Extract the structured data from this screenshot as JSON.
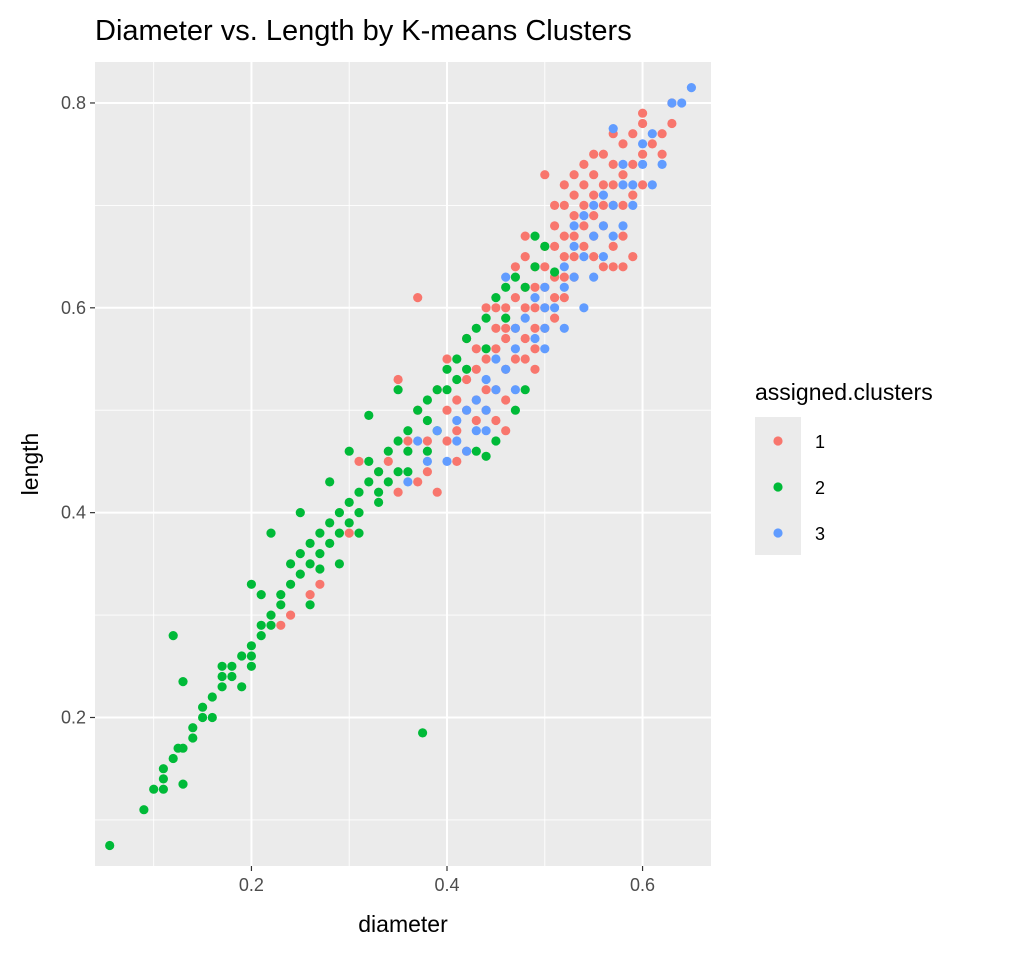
{
  "chart_data": {
    "type": "scatter",
    "title": "Diameter vs. Length by K-means Clusters",
    "xlabel": "diameter",
    "ylabel": "length",
    "xlim": [
      0.04,
      0.67
    ],
    "ylim": [
      0.055,
      0.84
    ],
    "x_ticks": [
      0.2,
      0.4,
      0.6
    ],
    "y_ticks": [
      0.2,
      0.4,
      0.6,
      0.8
    ],
    "x_tick_labels": [
      "0.2",
      "0.4",
      "0.6"
    ],
    "y_tick_labels": [
      "0.2",
      "0.4",
      "0.6",
      "0.8"
    ],
    "grid": true,
    "panel_background": "#ebebeb",
    "legend": {
      "title": "assigned.clusters",
      "placement": "right",
      "entries": [
        "1",
        "2",
        "3"
      ]
    },
    "series": [
      {
        "name": "1",
        "color": "#F8766D",
        "points": [
          [
            0.37,
            0.61
          ],
          [
            0.31,
            0.45
          ],
          [
            0.34,
            0.45
          ],
          [
            0.36,
            0.47
          ],
          [
            0.37,
            0.5
          ],
          [
            0.38,
            0.47
          ],
          [
            0.38,
            0.44
          ],
          [
            0.39,
            0.52
          ],
          [
            0.4,
            0.5
          ],
          [
            0.4,
            0.47
          ],
          [
            0.41,
            0.51
          ],
          [
            0.41,
            0.48
          ],
          [
            0.41,
            0.45
          ],
          [
            0.42,
            0.53
          ],
          [
            0.42,
            0.5
          ],
          [
            0.42,
            0.46
          ],
          [
            0.42,
            0.57
          ],
          [
            0.43,
            0.54
          ],
          [
            0.43,
            0.51
          ],
          [
            0.43,
            0.49
          ],
          [
            0.43,
            0.56
          ],
          [
            0.44,
            0.55
          ],
          [
            0.44,
            0.52
          ],
          [
            0.44,
            0.5
          ],
          [
            0.45,
            0.58
          ],
          [
            0.45,
            0.56
          ],
          [
            0.45,
            0.52
          ],
          [
            0.45,
            0.49
          ],
          [
            0.46,
            0.6
          ],
          [
            0.46,
            0.57
          ],
          [
            0.46,
            0.54
          ],
          [
            0.46,
            0.51
          ],
          [
            0.46,
            0.58
          ],
          [
            0.47,
            0.61
          ],
          [
            0.47,
            0.58
          ],
          [
            0.47,
            0.55
          ],
          [
            0.47,
            0.64
          ],
          [
            0.48,
            0.62
          ],
          [
            0.48,
            0.6
          ],
          [
            0.48,
            0.57
          ],
          [
            0.48,
            0.55
          ],
          [
            0.48,
            0.67
          ],
          [
            0.49,
            0.64
          ],
          [
            0.49,
            0.62
          ],
          [
            0.49,
            0.6
          ],
          [
            0.49,
            0.58
          ],
          [
            0.49,
            0.56
          ],
          [
            0.5,
            0.66
          ],
          [
            0.5,
            0.64
          ],
          [
            0.5,
            0.62
          ],
          [
            0.5,
            0.6
          ],
          [
            0.5,
            0.58
          ],
          [
            0.51,
            0.68
          ],
          [
            0.51,
            0.66
          ],
          [
            0.51,
            0.63
          ],
          [
            0.51,
            0.61
          ],
          [
            0.51,
            0.59
          ],
          [
            0.52,
            0.7
          ],
          [
            0.52,
            0.67
          ],
          [
            0.52,
            0.65
          ],
          [
            0.52,
            0.63
          ],
          [
            0.52,
            0.61
          ],
          [
            0.53,
            0.71
          ],
          [
            0.53,
            0.69
          ],
          [
            0.53,
            0.67
          ],
          [
            0.53,
            0.65
          ],
          [
            0.53,
            0.63
          ],
          [
            0.54,
            0.72
          ],
          [
            0.54,
            0.7
          ],
          [
            0.54,
            0.68
          ],
          [
            0.54,
            0.66
          ],
          [
            0.55,
            0.73
          ],
          [
            0.55,
            0.71
          ],
          [
            0.55,
            0.69
          ],
          [
            0.55,
            0.67
          ],
          [
            0.55,
            0.65
          ],
          [
            0.56,
            0.75
          ],
          [
            0.56,
            0.72
          ],
          [
            0.56,
            0.7
          ],
          [
            0.56,
            0.68
          ],
          [
            0.57,
            0.74
          ],
          [
            0.57,
            0.72
          ],
          [
            0.57,
            0.7
          ],
          [
            0.57,
            0.66
          ],
          [
            0.58,
            0.76
          ],
          [
            0.58,
            0.73
          ],
          [
            0.58,
            0.7
          ],
          [
            0.58,
            0.67
          ],
          [
            0.59,
            0.77
          ],
          [
            0.59,
            0.74
          ],
          [
            0.59,
            0.71
          ],
          [
            0.6,
            0.78
          ],
          [
            0.6,
            0.75
          ],
          [
            0.61,
            0.76
          ],
          [
            0.62,
            0.77
          ],
          [
            0.62,
            0.75
          ],
          [
            0.63,
            0.78
          ],
          [
            0.63,
            0.8
          ],
          [
            0.58,
            0.64
          ],
          [
            0.57,
            0.64
          ],
          [
            0.59,
            0.65
          ],
          [
            0.49,
            0.54
          ],
          [
            0.44,
            0.6
          ],
          [
            0.5,
            0.73
          ],
          [
            0.53,
            0.73
          ],
          [
            0.55,
            0.75
          ],
          [
            0.56,
            0.64
          ],
          [
            0.6,
            0.72
          ],
          [
            0.52,
            0.72
          ],
          [
            0.46,
            0.48
          ],
          [
            0.39,
            0.42
          ],
          [
            0.37,
            0.43
          ],
          [
            0.35,
            0.42
          ],
          [
            0.33,
            0.44
          ],
          [
            0.3,
            0.38
          ],
          [
            0.27,
            0.33
          ],
          [
            0.26,
            0.32
          ],
          [
            0.24,
            0.3
          ],
          [
            0.23,
            0.29
          ],
          [
            0.35,
            0.53
          ],
          [
            0.4,
            0.55
          ],
          [
            0.45,
            0.6
          ],
          [
            0.48,
            0.65
          ],
          [
            0.51,
            0.7
          ],
          [
            0.54,
            0.74
          ],
          [
            0.57,
            0.77
          ],
          [
            0.6,
            0.79
          ]
        ]
      },
      {
        "name": "2",
        "color": "#00BA38",
        "points": [
          [
            0.055,
            0.075
          ],
          [
            0.09,
            0.11
          ],
          [
            0.1,
            0.13
          ],
          [
            0.11,
            0.13
          ],
          [
            0.11,
            0.15
          ],
          [
            0.12,
            0.16
          ],
          [
            0.13,
            0.17
          ],
          [
            0.13,
            0.135
          ],
          [
            0.12,
            0.28
          ],
          [
            0.13,
            0.235
          ],
          [
            0.14,
            0.19
          ],
          [
            0.15,
            0.2
          ],
          [
            0.15,
            0.21
          ],
          [
            0.16,
            0.22
          ],
          [
            0.17,
            0.23
          ],
          [
            0.17,
            0.24
          ],
          [
            0.18,
            0.24
          ],
          [
            0.18,
            0.25
          ],
          [
            0.19,
            0.26
          ],
          [
            0.2,
            0.27
          ],
          [
            0.2,
            0.26
          ],
          [
            0.21,
            0.29
          ],
          [
            0.21,
            0.28
          ],
          [
            0.22,
            0.3
          ],
          [
            0.22,
            0.29
          ],
          [
            0.23,
            0.31
          ],
          [
            0.23,
            0.32
          ],
          [
            0.24,
            0.33
          ],
          [
            0.24,
            0.35
          ],
          [
            0.25,
            0.34
          ],
          [
            0.25,
            0.36
          ],
          [
            0.26,
            0.35
          ],
          [
            0.26,
            0.37
          ],
          [
            0.27,
            0.38
          ],
          [
            0.27,
            0.36
          ],
          [
            0.28,
            0.39
          ],
          [
            0.28,
            0.37
          ],
          [
            0.29,
            0.4
          ],
          [
            0.29,
            0.38
          ],
          [
            0.3,
            0.41
          ],
          [
            0.3,
            0.39
          ],
          [
            0.31,
            0.42
          ],
          [
            0.31,
            0.4
          ],
          [
            0.32,
            0.43
          ],
          [
            0.32,
            0.45
          ],
          [
            0.33,
            0.44
          ],
          [
            0.33,
            0.42
          ],
          [
            0.34,
            0.46
          ],
          [
            0.34,
            0.43
          ],
          [
            0.35,
            0.47
          ],
          [
            0.35,
            0.44
          ],
          [
            0.36,
            0.48
          ],
          [
            0.36,
            0.46
          ],
          [
            0.37,
            0.5
          ],
          [
            0.38,
            0.51
          ],
          [
            0.38,
            0.49
          ],
          [
            0.39,
            0.52
          ],
          [
            0.4,
            0.54
          ],
          [
            0.4,
            0.52
          ],
          [
            0.41,
            0.55
          ],
          [
            0.42,
            0.57
          ],
          [
            0.43,
            0.58
          ],
          [
            0.44,
            0.59
          ],
          [
            0.45,
            0.61
          ],
          [
            0.46,
            0.62
          ],
          [
            0.47,
            0.63
          ],
          [
            0.48,
            0.62
          ],
          [
            0.49,
            0.64
          ],
          [
            0.5,
            0.66
          ],
          [
            0.43,
            0.46
          ],
          [
            0.44,
            0.455
          ],
          [
            0.45,
            0.47
          ],
          [
            0.47,
            0.5
          ],
          [
            0.48,
            0.52
          ],
          [
            0.375,
            0.185
          ],
          [
            0.2,
            0.33
          ],
          [
            0.21,
            0.32
          ],
          [
            0.22,
            0.38
          ],
          [
            0.25,
            0.4
          ],
          [
            0.28,
            0.43
          ],
          [
            0.3,
            0.46
          ],
          [
            0.32,
            0.495
          ],
          [
            0.35,
            0.52
          ],
          [
            0.2,
            0.25
          ],
          [
            0.19,
            0.23
          ],
          [
            0.16,
            0.2
          ],
          [
            0.14,
            0.18
          ],
          [
            0.125,
            0.17
          ],
          [
            0.11,
            0.14
          ],
          [
            0.17,
            0.25
          ],
          [
            0.26,
            0.31
          ],
          [
            0.27,
            0.345
          ],
          [
            0.29,
            0.35
          ],
          [
            0.31,
            0.38
          ],
          [
            0.33,
            0.41
          ],
          [
            0.36,
            0.44
          ],
          [
            0.38,
            0.46
          ],
          [
            0.39,
            0.48
          ],
          [
            0.41,
            0.53
          ],
          [
            0.42,
            0.54
          ],
          [
            0.44,
            0.56
          ],
          [
            0.46,
            0.59
          ],
          [
            0.49,
            0.67
          ],
          [
            0.51,
            0.635
          ]
        ]
      },
      {
        "name": "3",
        "color": "#619CFF",
        "points": [
          [
            0.65,
            0.815
          ],
          [
            0.63,
            0.8
          ],
          [
            0.57,
            0.775
          ],
          [
            0.6,
            0.76
          ],
          [
            0.62,
            0.74
          ],
          [
            0.58,
            0.74
          ],
          [
            0.59,
            0.72
          ],
          [
            0.61,
            0.72
          ],
          [
            0.56,
            0.71
          ],
          [
            0.57,
            0.7
          ],
          [
            0.59,
            0.7
          ],
          [
            0.58,
            0.68
          ],
          [
            0.56,
            0.68
          ],
          [
            0.54,
            0.69
          ],
          [
            0.55,
            0.67
          ],
          [
            0.57,
            0.67
          ],
          [
            0.53,
            0.66
          ],
          [
            0.54,
            0.65
          ],
          [
            0.56,
            0.65
          ],
          [
            0.52,
            0.64
          ],
          [
            0.53,
            0.63
          ],
          [
            0.55,
            0.63
          ],
          [
            0.5,
            0.62
          ],
          [
            0.52,
            0.62
          ],
          [
            0.49,
            0.61
          ],
          [
            0.51,
            0.6
          ],
          [
            0.48,
            0.59
          ],
          [
            0.5,
            0.58
          ],
          [
            0.47,
            0.58
          ],
          [
            0.46,
            0.63
          ],
          [
            0.49,
            0.57
          ],
          [
            0.47,
            0.56
          ],
          [
            0.45,
            0.55
          ],
          [
            0.46,
            0.54
          ],
          [
            0.44,
            0.53
          ],
          [
            0.45,
            0.52
          ],
          [
            0.43,
            0.51
          ],
          [
            0.44,
            0.5
          ],
          [
            0.42,
            0.5
          ],
          [
            0.43,
            0.48
          ],
          [
            0.41,
            0.47
          ],
          [
            0.42,
            0.46
          ],
          [
            0.4,
            0.45
          ],
          [
            0.38,
            0.45
          ],
          [
            0.36,
            0.43
          ],
          [
            0.37,
            0.47
          ],
          [
            0.39,
            0.48
          ],
          [
            0.41,
            0.49
          ],
          [
            0.44,
            0.48
          ],
          [
            0.47,
            0.52
          ],
          [
            0.5,
            0.6
          ],
          [
            0.53,
            0.68
          ],
          [
            0.55,
            0.7
          ],
          [
            0.58,
            0.72
          ],
          [
            0.6,
            0.74
          ],
          [
            0.61,
            0.77
          ],
          [
            0.64,
            0.8
          ],
          [
            0.54,
            0.6
          ],
          [
            0.52,
            0.58
          ],
          [
            0.5,
            0.56
          ]
        ]
      }
    ]
  }
}
